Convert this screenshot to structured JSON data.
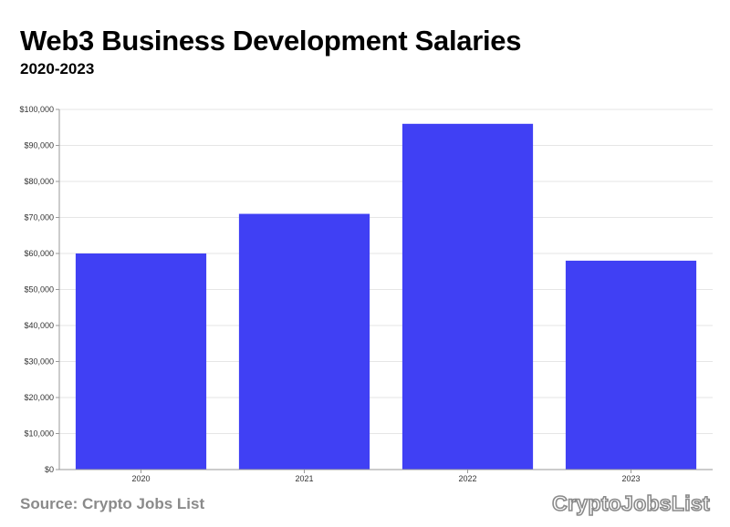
{
  "header": {
    "title": "Web3 Business Development Salaries",
    "subtitle": "2020-2023"
  },
  "footer": {
    "source": "Source: Crypto Jobs List",
    "logo_text": "CryptoJobsList"
  },
  "colors": {
    "bar": "#4040f4",
    "grid": "#e6e6e6",
    "axis": "#999999",
    "muted_text": "#8a8a8a"
  },
  "chart_data": {
    "type": "bar",
    "title": "Web3 Business Development Salaries",
    "subtitle": "2020-2023",
    "categories": [
      "2020",
      "2021",
      "2022",
      "2023"
    ],
    "values": [
      60000,
      71000,
      96000,
      58000
    ],
    "ylim": [
      0,
      100000
    ],
    "yticks": [
      0,
      10000,
      20000,
      30000,
      40000,
      50000,
      60000,
      70000,
      80000,
      90000,
      100000
    ],
    "ytick_labels": [
      "$0",
      "$10,000",
      "$20,000",
      "$30,000",
      "$40,000",
      "$50,000",
      "$60,000",
      "$70,000",
      "$80,000",
      "$90,000",
      "$100,000"
    ],
    "xlabel": "",
    "ylabel": "",
    "grid": true,
    "legend": "none"
  }
}
